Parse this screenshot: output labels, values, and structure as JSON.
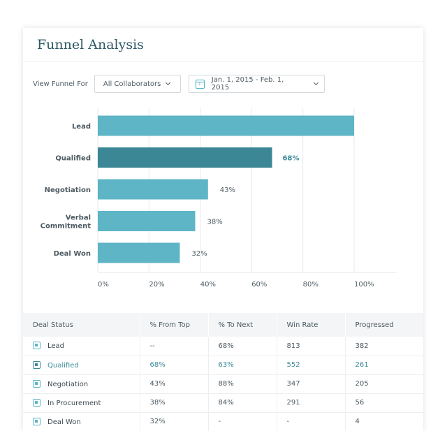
{
  "header": {
    "title": "Funnel Analysis"
  },
  "filters": {
    "view_label": "View Funnel For",
    "collaborators": "All Collaborators",
    "date_range": "Jan. 1, 2015 - Feb. 1, 2015"
  },
  "chart_data": {
    "type": "bar",
    "orientation": "horizontal",
    "categories": [
      "Lead",
      "Qualified",
      "Negotiation",
      "Verbal\nCommitment",
      "Deal Won"
    ],
    "values": [
      100,
      68,
      43,
      38,
      32
    ],
    "value_labels": [
      "",
      "68%",
      "43%",
      "38%",
      "32%"
    ],
    "highlight_index": 1,
    "xlim": [
      0,
      100
    ],
    "ticks": [
      "0%",
      "20%",
      "40%",
      "60%",
      "80%",
      "100%"
    ],
    "tick_values": [
      0,
      20,
      40,
      60,
      80,
      100
    ],
    "grid": true,
    "colors": {
      "bar": "#5db5c6",
      "highlight": "#3b8795",
      "label_highlight": "#3e8a99"
    }
  },
  "table": {
    "columns": [
      "Deal Status",
      "% From Top",
      "% To Next",
      "Win Rate",
      "Progressed"
    ],
    "rows": [
      {
        "status": "Lead",
        "from_top": "--",
        "to_next": "68%",
        "win_rate": "813",
        "progressed": "382"
      },
      {
        "status": "Qualified",
        "from_top": "68%",
        "to_next": "63%",
        "win_rate": "552",
        "progressed": "261"
      },
      {
        "status": "Negotiation",
        "from_top": "43%",
        "to_next": "88%",
        "win_rate": "347",
        "progressed": "205"
      },
      {
        "status": "In Procurement",
        "from_top": "38%",
        "to_next": "84%",
        "win_rate": "291",
        "progressed": "56"
      },
      {
        "status": "Deal Won",
        "from_top": "32%",
        "to_next": "-",
        "win_rate": "-",
        "progressed": "4"
      }
    ],
    "highlight_row": 1
  }
}
